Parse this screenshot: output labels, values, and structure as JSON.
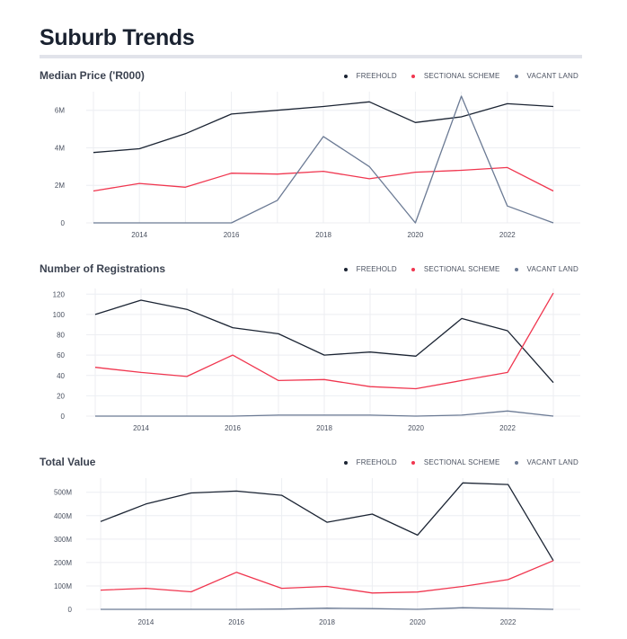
{
  "page": {
    "title": "Suburb Trends"
  },
  "colors": {
    "freehold": "#1b2433",
    "sectional_scheme": "#f0364f",
    "vacant_land": "#6b7a94",
    "grid": "#eceef2"
  },
  "chart_data": [
    {
      "type": "line",
      "title": "Median Price ('R000)",
      "x": [
        2013,
        2014,
        2015,
        2016,
        2017,
        2018,
        2019,
        2020,
        2021,
        2022,
        2023
      ],
      "xticks": [
        "2014",
        "2016",
        "2018",
        "2020",
        "2022"
      ],
      "ylim": [
        0,
        6800
      ],
      "yticks": [
        {
          "v": 0,
          "label": "0"
        },
        {
          "v": 2000,
          "label": "2M"
        },
        {
          "v": 4000,
          "label": "4M"
        },
        {
          "v": 6000,
          "label": "6M"
        }
      ],
      "legend": "top-right",
      "series": [
        {
          "name": "FREEHOLD",
          "color_key": "freehold",
          "values": [
            3750,
            3950,
            4750,
            5800,
            6000,
            6200,
            6450,
            5350,
            5650,
            6350,
            6200
          ]
        },
        {
          "name": "SECTIONAL SCHEME",
          "color_key": "sectional_scheme",
          "values": [
            1700,
            2100,
            1900,
            2650,
            2600,
            2750,
            2350,
            2700,
            2800,
            2950,
            1700
          ]
        },
        {
          "name": "VACANT LAND",
          "color_key": "vacant_land",
          "values": [
            0,
            0,
            0,
            0,
            1200,
            4600,
            3000,
            0,
            6750,
            900,
            0
          ]
        }
      ]
    },
    {
      "type": "line",
      "title": "Number of Registrations",
      "x": [
        2013,
        2014,
        2015,
        2016,
        2017,
        2018,
        2019,
        2020,
        2021,
        2022,
        2023
      ],
      "xticks": [
        "2014",
        "2016",
        "2018",
        "2020",
        "2022"
      ],
      "ylim": [
        0,
        122
      ],
      "yticks": [
        {
          "v": 0,
          "label": "0"
        },
        {
          "v": 20,
          "label": "20"
        },
        {
          "v": 40,
          "label": "40"
        },
        {
          "v": 60,
          "label": "60"
        },
        {
          "v": 80,
          "label": "80"
        },
        {
          "v": 100,
          "label": "100"
        },
        {
          "v": 120,
          "label": "120"
        }
      ],
      "legend": "top-right",
      "series": [
        {
          "name": "FREEHOLD",
          "color_key": "freehold",
          "values": [
            100,
            114,
            105,
            87,
            81,
            60,
            63,
            59,
            96,
            84,
            33
          ]
        },
        {
          "name": "SECTIONAL SCHEME",
          "color_key": "sectional_scheme",
          "values": [
            48,
            43,
            39,
            60,
            35,
            36,
            29,
            27,
            35,
            43,
            121
          ]
        },
        {
          "name": "VACANT LAND",
          "color_key": "vacant_land",
          "values": [
            0,
            0,
            0,
            0,
            1,
            1,
            1,
            0,
            1,
            5,
            0
          ]
        }
      ]
    },
    {
      "type": "line",
      "title": "Total Value",
      "x": [
        2013,
        2014,
        2015,
        2016,
        2017,
        2018,
        2019,
        2020,
        2021,
        2022,
        2023
      ],
      "xticks": [
        "2014",
        "2016",
        "2018",
        "2020",
        "2022"
      ],
      "ylim": [
        0,
        545
      ],
      "yticks": [
        {
          "v": 0,
          "label": "0"
        },
        {
          "v": 100,
          "label": "100M"
        },
        {
          "v": 200,
          "label": "200M"
        },
        {
          "v": 300,
          "label": "300M"
        },
        {
          "v": 400,
          "label": "400M"
        },
        {
          "v": 500,
          "label": "500M"
        }
      ],
      "legend": "top-right",
      "series": [
        {
          "name": "FREEHOLD",
          "color_key": "freehold",
          "values": [
            375,
            450,
            497,
            505,
            487,
            372,
            407,
            317,
            540,
            533,
            208
          ]
        },
        {
          "name": "SECTIONAL SCHEME",
          "color_key": "sectional_scheme",
          "values": [
            82,
            90,
            75,
            158,
            90,
            98,
            70,
            74,
            98,
            127,
            208
          ]
        },
        {
          "name": "VACANT LAND",
          "color_key": "vacant_land",
          "values": [
            0,
            0,
            0,
            0,
            1,
            5,
            3,
            0,
            7,
            4,
            0
          ]
        }
      ]
    }
  ]
}
